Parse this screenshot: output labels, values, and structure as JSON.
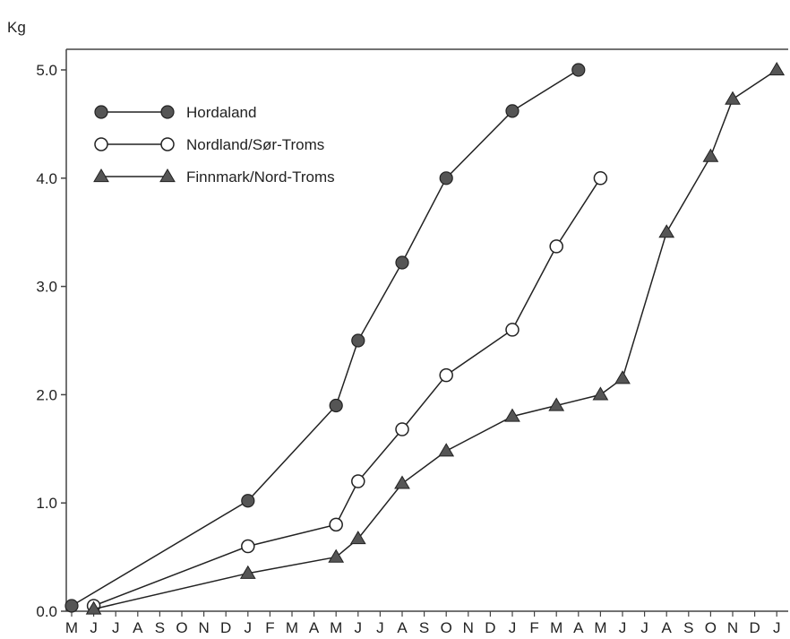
{
  "chart_data": {
    "type": "line",
    "title": "",
    "ylabel": "Kg",
    "xlabel": "",
    "categories": [
      "M",
      "J",
      "J",
      "A",
      "S",
      "O",
      "N",
      "D",
      "J",
      "F",
      "M",
      "A",
      "M",
      "J",
      "J",
      "A",
      "S",
      "O",
      "N",
      "D",
      "J",
      "F",
      "M",
      "A",
      "M",
      "J",
      "J",
      "A",
      "S",
      "O",
      "N",
      "D",
      "J"
    ],
    "ylim": [
      0,
      5.0
    ],
    "yticks": [
      "0.0",
      "1.0",
      "2.0",
      "3.0",
      "4.0",
      "5.0"
    ],
    "ytick_values": [
      0,
      1,
      2,
      3,
      4,
      5
    ],
    "grid": false,
    "legend_position": "top-left",
    "series": [
      {
        "name": "Hordaland",
        "marker": "filled-circle",
        "color": "#555555",
        "points": [
          [
            0,
            0.05
          ],
          [
            8,
            1.02
          ],
          [
            12,
            1.9
          ],
          [
            13,
            2.5
          ],
          [
            15,
            3.22
          ],
          [
            17,
            4.0
          ],
          [
            20,
            4.62
          ],
          [
            23,
            5.0
          ]
        ]
      },
      {
        "name": "Nordland/Sør-Troms",
        "marker": "open-circle",
        "color": "#ffffff",
        "points": [
          [
            1,
            0.05
          ],
          [
            8,
            0.6
          ],
          [
            12,
            0.8
          ],
          [
            13,
            1.2
          ],
          [
            15,
            1.68
          ],
          [
            17,
            2.18
          ],
          [
            20,
            2.6
          ],
          [
            22,
            3.37
          ],
          [
            24,
            4.0
          ]
        ]
      },
      {
        "name": "Finnmark/Nord-Troms",
        "marker": "filled-triangle",
        "color": "#555555",
        "points": [
          [
            1,
            0.02
          ],
          [
            8,
            0.35
          ],
          [
            12,
            0.5
          ],
          [
            13,
            0.67
          ],
          [
            15,
            1.18
          ],
          [
            17,
            1.48
          ],
          [
            20,
            1.8
          ],
          [
            22,
            1.9
          ],
          [
            24,
            2.0
          ],
          [
            25,
            2.15
          ],
          [
            27,
            3.5
          ],
          [
            29,
            4.2
          ],
          [
            30,
            4.73
          ],
          [
            32,
            5.0
          ]
        ]
      }
    ]
  }
}
